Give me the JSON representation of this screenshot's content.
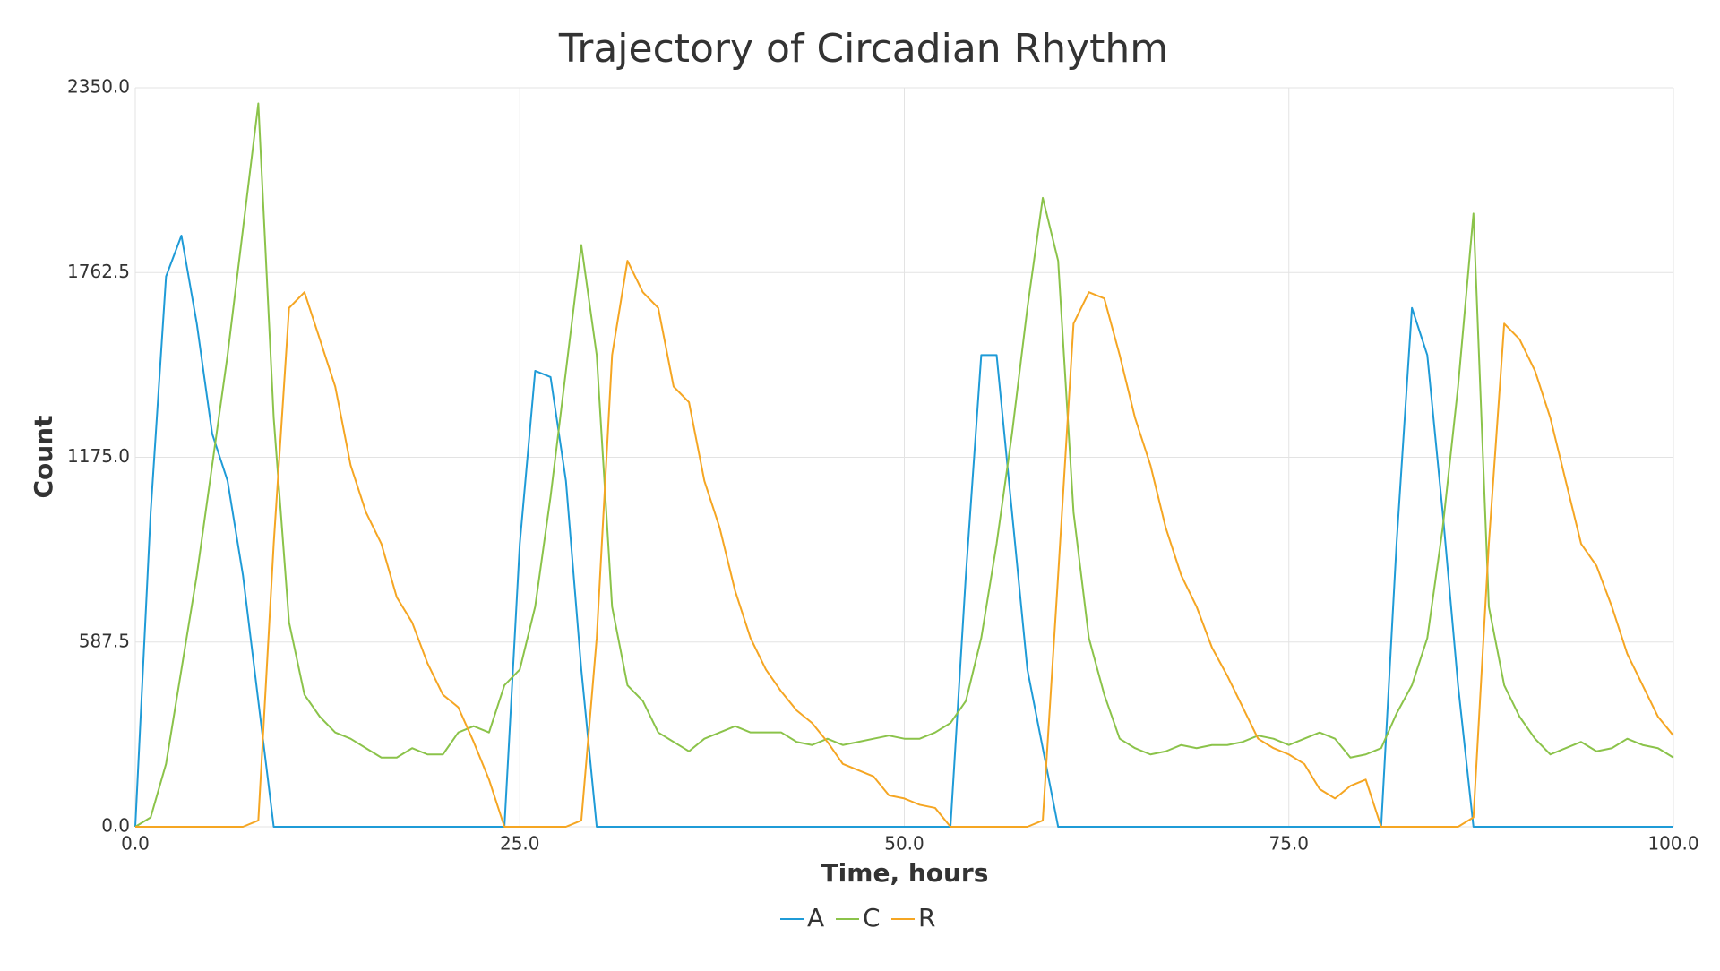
{
  "chart_data": {
    "type": "line",
    "title": "Trajectory of Circadian Rhythm",
    "xlabel": "Time, hours",
    "ylabel": "Count",
    "x": [
      0,
      1,
      2,
      3,
      4,
      5,
      6,
      7,
      8,
      9,
      10,
      11,
      12,
      13,
      14,
      15,
      16,
      17,
      18,
      19,
      20,
      21,
      22,
      23,
      24,
      25,
      26,
      27,
      28,
      29,
      30,
      31,
      32,
      33,
      34,
      35,
      36,
      37,
      38,
      39,
      40,
      41,
      42,
      43,
      44,
      45,
      46,
      47,
      48,
      49,
      50,
      51,
      52,
      53,
      54,
      55,
      56,
      57,
      58,
      59,
      60,
      61,
      62,
      63,
      64,
      65,
      66,
      67,
      68,
      69,
      70,
      71,
      72,
      73,
      74,
      75,
      76,
      77,
      78,
      79,
      80,
      81,
      82,
      83,
      84,
      85,
      86,
      87,
      88,
      89,
      90,
      91,
      92,
      93,
      94,
      95,
      96,
      97,
      98,
      99,
      100
    ],
    "xlim": [
      0,
      100
    ],
    "xticks": [
      {
        "value": 0,
        "label": "0.0"
      },
      {
        "value": 25,
        "label": "25.0"
      },
      {
        "value": 50,
        "label": "50.0"
      },
      {
        "value": 75,
        "label": "75.0"
      },
      {
        "value": 100,
        "label": "100.0"
      }
    ],
    "ylim": [
      0,
      2350
    ],
    "yticks": [
      {
        "value": 0,
        "label": "0.0"
      },
      587.5,
      {
        "value": 1175,
        "label": "1175.0"
      },
      1762.5,
      {
        "value": 2350,
        "label": "2350.0"
      }
    ],
    "grid": true,
    "legend": "bottom",
    "series": [
      {
        "name": "A",
        "color": "#1f9bd7",
        "values": [
          0,
          1000,
          1750,
          1880,
          1600,
          1250,
          1100,
          800,
          400,
          0,
          0,
          0,
          0,
          0,
          0,
          0,
          0,
          0,
          0,
          0,
          0,
          0,
          0,
          0,
          0,
          900,
          1450,
          1430,
          1100,
          500,
          0,
          0,
          0,
          0,
          0,
          0,
          0,
          0,
          0,
          0,
          0,
          0,
          0,
          0,
          0,
          0,
          0,
          0,
          0,
          0,
          0,
          0,
          0,
          0,
          800,
          1500,
          1500,
          1000,
          500,
          250,
          0,
          0,
          0,
          0,
          0,
          0,
          0,
          0,
          0,
          0,
          0,
          0,
          0,
          0,
          0,
          0,
          0,
          0,
          0,
          0,
          0,
          0,
          900,
          1650,
          1500,
          1000,
          450,
          0,
          0,
          0,
          0,
          0,
          0,
          0,
          0,
          0,
          0,
          0,
          0,
          0,
          0
        ]
      },
      {
        "name": "C",
        "color": "#8bc34a",
        "values": [
          0,
          30,
          200,
          500,
          800,
          1150,
          1500,
          1900,
          2300,
          1300,
          650,
          420,
          350,
          300,
          280,
          250,
          220,
          220,
          250,
          230,
          230,
          300,
          320,
          300,
          450,
          500,
          700,
          1050,
          1450,
          1850,
          1500,
          700,
          450,
          400,
          300,
          270,
          240,
          280,
          300,
          320,
          300,
          300,
          300,
          270,
          260,
          280,
          260,
          270,
          280,
          290,
          280,
          280,
          300,
          330,
          400,
          600,
          900,
          1250,
          1650,
          2000,
          1800,
          1000,
          600,
          420,
          280,
          250,
          230,
          240,
          260,
          250,
          260,
          260,
          270,
          290,
          280,
          260,
          280,
          300,
          280,
          220,
          230,
          250,
          360,
          450,
          600,
          950,
          1400,
          1950,
          700,
          450,
          350,
          280,
          230,
          250,
          270,
          240,
          250,
          280,
          260,
          250,
          220
        ]
      },
      {
        "name": "R",
        "color": "#f5a623",
        "values": [
          0,
          0,
          0,
          0,
          0,
          0,
          0,
          0,
          20,
          900,
          1650,
          1700,
          1550,
          1400,
          1150,
          1000,
          900,
          730,
          650,
          520,
          420,
          380,
          270,
          150,
          0,
          0,
          0,
          0,
          0,
          20,
          600,
          1500,
          1800,
          1700,
          1650,
          1400,
          1350,
          1100,
          950,
          750,
          600,
          500,
          430,
          370,
          330,
          270,
          200,
          180,
          160,
          100,
          90,
          70,
          60,
          0,
          0,
          0,
          0,
          0,
          0,
          20,
          800,
          1600,
          1700,
          1680,
          1500,
          1300,
          1150,
          950,
          800,
          700,
          570,
          480,
          380,
          280,
          250,
          230,
          200,
          120,
          90,
          130,
          150,
          0,
          0,
          0,
          0,
          0,
          0,
          30,
          900,
          1600,
          1550,
          1450,
          1300,
          1100,
          900,
          830,
          700,
          550,
          450,
          350,
          290
        ]
      }
    ]
  }
}
